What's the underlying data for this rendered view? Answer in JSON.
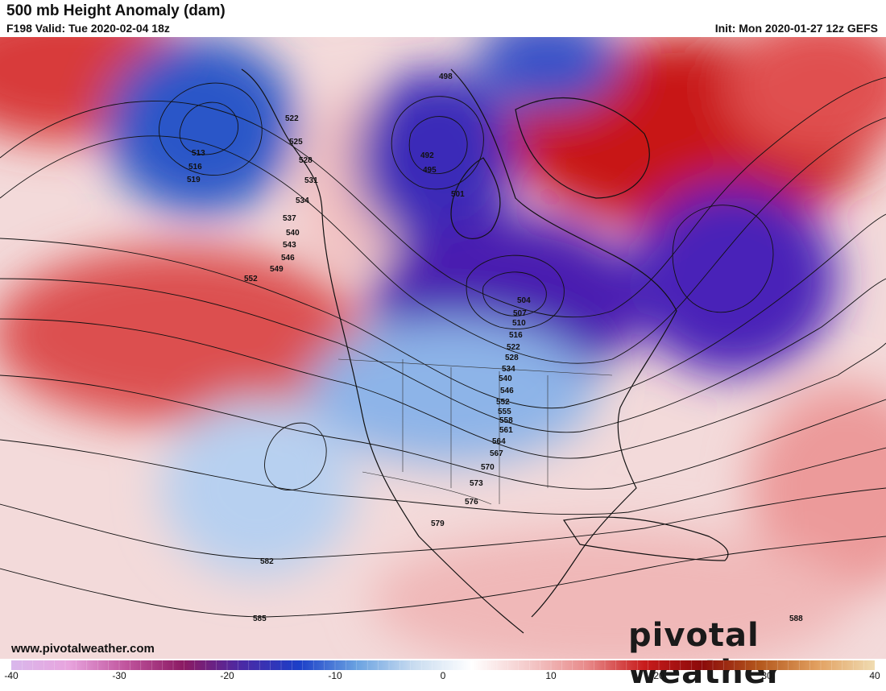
{
  "header": {
    "title": "500 mb Height Anomaly (dam)",
    "valid": "F198 Valid: Tue 2020-02-04 18z",
    "init": "Init: Mon 2020-01-27 12z GEFS"
  },
  "footer": {
    "website": "www.pivotalweather.com",
    "brand": "pivotal weather"
  },
  "colorbar": {
    "min": -40,
    "max": 40,
    "tick_labels": [
      "-40",
      "-30",
      "-20",
      "-10",
      "0",
      "10",
      "20",
      "30",
      "40"
    ],
    "tick_values": [
      -40,
      -30,
      -20,
      -10,
      0,
      10,
      20,
      30,
      40
    ],
    "colors": [
      "#d9b8ec",
      "#e8a4de",
      "#c0549d",
      "#8b1a63",
      "#4b2aa5",
      "#1c3fc8",
      "#6aa2e1",
      "#c9dcf0",
      "#ffffff",
      "#f4c9c9",
      "#e88a8a",
      "#c81c1c",
      "#8b0a0a",
      "#b4581d",
      "#e2a060",
      "#f0dcb2"
    ]
  },
  "contour_labels": [
    "498",
    "492",
    "495",
    "501",
    "522",
    "525",
    "528",
    "531",
    "534",
    "537",
    "540",
    "543",
    "546",
    "549",
    "552",
    "513",
    "516",
    "519",
    "504",
    "507",
    "510",
    "516",
    "522",
    "528",
    "534",
    "540",
    "546",
    "552",
    "555",
    "558",
    "561",
    "564",
    "567",
    "570",
    "573",
    "576",
    "579",
    "582",
    "585",
    "588"
  ]
}
